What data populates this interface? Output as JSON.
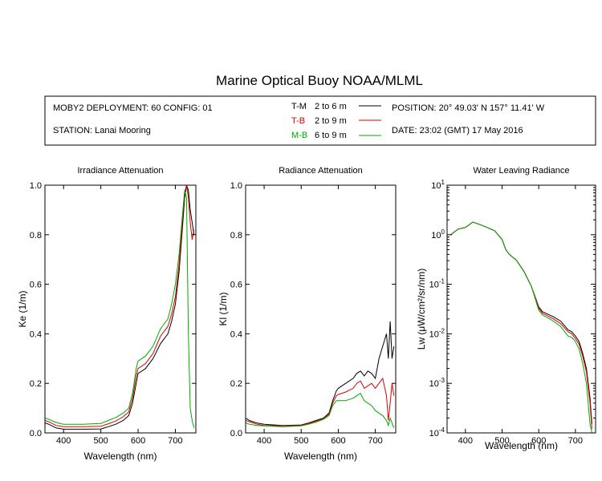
{
  "title": "Marine Optical Buoy NOAA/MLML",
  "info": {
    "deployment": "MOBY2 DEPLOYMENT: 60 CONFIG: 01",
    "station": "STATION: Lanai Mooring",
    "position": "POSITION: 20° 49.03' N   157° 11.41' W",
    "date": "DATE: 23:02 (GMT) 17 May 2016",
    "legend": [
      {
        "label": "T-M",
        "range": "2 to 6  m",
        "color": "#000000"
      },
      {
        "label": "T-B",
        "range": "2 to 9  m",
        "color": "#dd0000"
      },
      {
        "label": "M-B",
        "range": "6 to 9  m",
        "color": "#00aa00"
      }
    ]
  },
  "chart_data": [
    {
      "type": "line",
      "title": "Irradiance Attenuation",
      "xlabel": "Wavelength (nm)",
      "ylabel": "Ke  (1/m)",
      "xlim": [
        350,
        755
      ],
      "ylim": [
        0,
        1
      ],
      "xticks": [
        400,
        500,
        600,
        700
      ],
      "yticks": [
        0.0,
        0.2,
        0.4,
        0.6,
        0.8,
        1.0
      ],
      "ytick_labels": [
        "0.0",
        "0.2",
        "0.4",
        "0.6",
        "0.8",
        "1.0"
      ],
      "series": [
        {
          "name": "T-M",
          "color": "#000000",
          "x": [
            350,
            360,
            380,
            400,
            450,
            500,
            520,
            540,
            560,
            575,
            585,
            595,
            600,
            610,
            620,
            640,
            660,
            670,
            680,
            690,
            700,
            710,
            720,
            725,
            730,
            735,
            740,
            745,
            750
          ],
          "y": [
            0.04,
            0.035,
            0.02,
            0.015,
            0.015,
            0.016,
            0.025,
            0.035,
            0.05,
            0.07,
            0.12,
            0.2,
            0.24,
            0.25,
            0.26,
            0.3,
            0.36,
            0.38,
            0.4,
            0.45,
            0.52,
            0.65,
            0.85,
            0.95,
            1.0,
            0.98,
            0.9,
            0.85,
            0.8
          ]
        },
        {
          "name": "T-B",
          "color": "#dd0000",
          "x": [
            350,
            360,
            380,
            400,
            450,
            500,
            520,
            540,
            560,
            575,
            585,
            595,
            600,
            610,
            620,
            640,
            660,
            670,
            680,
            690,
            700,
            710,
            720,
            725,
            730,
            735,
            740,
            745,
            750
          ],
          "y": [
            0.05,
            0.045,
            0.03,
            0.025,
            0.025,
            0.027,
            0.037,
            0.048,
            0.065,
            0.085,
            0.14,
            0.23,
            0.26,
            0.27,
            0.28,
            0.32,
            0.39,
            0.41,
            0.43,
            0.48,
            0.55,
            0.68,
            0.88,
            0.97,
            1.0,
            0.95,
            0.85,
            0.78,
            0.82
          ]
        },
        {
          "name": "M-B",
          "color": "#00aa00",
          "x": [
            350,
            360,
            380,
            400,
            450,
            500,
            520,
            540,
            560,
            575,
            585,
            595,
            600,
            610,
            620,
            640,
            660,
            670,
            680,
            690,
            700,
            710,
            720,
            725,
            730,
            735,
            740,
            745,
            750
          ],
          "y": [
            0.06,
            0.055,
            0.042,
            0.035,
            0.035,
            0.038,
            0.05,
            0.062,
            0.08,
            0.1,
            0.16,
            0.26,
            0.29,
            0.3,
            0.31,
            0.35,
            0.42,
            0.44,
            0.46,
            0.52,
            0.6,
            0.72,
            0.9,
            0.98,
            0.95,
            0.4,
            0.1,
            0.05,
            0.02
          ]
        }
      ]
    },
    {
      "type": "line",
      "title": "Radiance Attenuation",
      "xlabel": "Wavelength (nm)",
      "ylabel": "Kl  (1/m)",
      "xlim": [
        350,
        755
      ],
      "ylim": [
        0,
        1
      ],
      "xticks": [
        400,
        500,
        600,
        700
      ],
      "yticks": [
        0.0,
        0.2,
        0.4,
        0.6,
        0.8,
        1.0
      ],
      "ytick_labels": [
        "0.0",
        "0.2",
        "0.4",
        "0.6",
        "0.8",
        "1.0"
      ],
      "series": [
        {
          "name": "T-M",
          "color": "#000000",
          "x": [
            350,
            360,
            380,
            400,
            450,
            500,
            520,
            540,
            560,
            575,
            585,
            595,
            600,
            610,
            620,
            640,
            650,
            660,
            670,
            680,
            690,
            700,
            710,
            720,
            730,
            735,
            740,
            745,
            750
          ],
          "y": [
            0.06,
            0.05,
            0.04,
            0.035,
            0.03,
            0.032,
            0.04,
            0.05,
            0.06,
            0.08,
            0.13,
            0.17,
            0.18,
            0.19,
            0.2,
            0.22,
            0.24,
            0.25,
            0.23,
            0.25,
            0.24,
            0.22,
            0.3,
            0.35,
            0.4,
            0.3,
            0.45,
            0.3,
            0.35
          ]
        },
        {
          "name": "T-B",
          "color": "#dd0000",
          "x": [
            350,
            360,
            380,
            400,
            450,
            500,
            520,
            540,
            560,
            575,
            585,
            595,
            600,
            610,
            620,
            640,
            650,
            660,
            670,
            680,
            690,
            700,
            710,
            720,
            730,
            735,
            740,
            745,
            750
          ],
          "y": [
            0.05,
            0.045,
            0.035,
            0.03,
            0.028,
            0.03,
            0.038,
            0.047,
            0.058,
            0.075,
            0.12,
            0.15,
            0.155,
            0.16,
            0.165,
            0.18,
            0.2,
            0.21,
            0.18,
            0.19,
            0.2,
            0.18,
            0.2,
            0.22,
            0.15,
            0.05,
            0.12,
            0.2,
            0.15
          ]
        },
        {
          "name": "M-B",
          "color": "#00aa00",
          "x": [
            350,
            360,
            380,
            400,
            450,
            500,
            520,
            540,
            560,
            575,
            585,
            595,
            600,
            610,
            620,
            640,
            650,
            660,
            670,
            680,
            690,
            700,
            710,
            720,
            730,
            735,
            740,
            745,
            750
          ],
          "y": [
            0.04,
            0.035,
            0.03,
            0.028,
            0.025,
            0.028,
            0.035,
            0.043,
            0.055,
            0.07,
            0.11,
            0.13,
            0.13,
            0.13,
            0.13,
            0.14,
            0.15,
            0.16,
            0.13,
            0.12,
            0.11,
            0.09,
            0.08,
            0.07,
            0.05,
            0.03,
            0.06,
            0.04,
            0.02
          ]
        }
      ]
    },
    {
      "type": "line",
      "title": "Water Leaving Radiance",
      "xlabel": "Wavelength (nm)",
      "ylabel": "Lw  (μW/cm²/sr/nm)",
      "yscale": "log",
      "xlim": [
        350,
        755
      ],
      "ylim": [
        0.0001,
        10
      ],
      "xticks": [
        400,
        500,
        600,
        700
      ],
      "ytick_exponents": [
        "1",
        "0",
        "-1",
        "-2",
        "-3",
        "-4"
      ],
      "series": [
        {
          "name": "T-M",
          "color": "#000000",
          "x": [
            360,
            380,
            400,
            420,
            440,
            460,
            480,
            500,
            510,
            520,
            540,
            560,
            580,
            600,
            610,
            620,
            640,
            660,
            680,
            690,
            700,
            710,
            720,
            730,
            740,
            745
          ],
          "y": [
            1.0,
            1.3,
            1.4,
            1.8,
            1.6,
            1.4,
            1.2,
            0.8,
            0.5,
            0.4,
            0.3,
            0.18,
            0.09,
            0.035,
            0.028,
            0.026,
            0.022,
            0.018,
            0.012,
            0.011,
            0.009,
            0.007,
            0.004,
            0.002,
            0.0005,
            0.00015
          ]
        },
        {
          "name": "T-B",
          "color": "#dd0000",
          "x": [
            360,
            380,
            400,
            420,
            440,
            460,
            480,
            500,
            510,
            520,
            540,
            560,
            580,
            600,
            610,
            620,
            640,
            660,
            680,
            690,
            700,
            710,
            720,
            730,
            740,
            745
          ],
          "y": [
            1.0,
            1.3,
            1.4,
            1.8,
            1.6,
            1.4,
            1.2,
            0.8,
            0.5,
            0.4,
            0.3,
            0.18,
            0.09,
            0.033,
            0.026,
            0.024,
            0.02,
            0.016,
            0.011,
            0.01,
            0.008,
            0.0062,
            0.0035,
            0.0017,
            0.0004,
            0.00012
          ]
        },
        {
          "name": "M-B",
          "color": "#00aa00",
          "x": [
            360,
            380,
            400,
            420,
            440,
            460,
            480,
            500,
            510,
            520,
            540,
            560,
            580,
            600,
            610,
            620,
            640,
            660,
            680,
            690,
            700,
            710,
            720,
            730,
            740,
            745
          ],
          "y": [
            1.0,
            1.3,
            1.4,
            1.8,
            1.6,
            1.4,
            1.2,
            0.8,
            0.5,
            0.4,
            0.3,
            0.18,
            0.09,
            0.03,
            0.024,
            0.022,
            0.018,
            0.014,
            0.009,
            0.0085,
            0.007,
            0.005,
            0.0025,
            0.001,
            0.00015,
            0.0001
          ]
        }
      ]
    }
  ]
}
